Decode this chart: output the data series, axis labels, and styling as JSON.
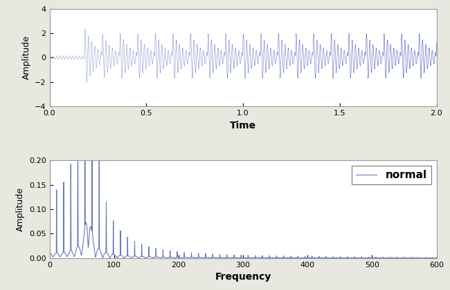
{
  "time_xlim": [
    0,
    2
  ],
  "time_ylim": [
    -4,
    4
  ],
  "time_yticks": [
    -4,
    -2,
    0,
    2,
    4
  ],
  "time_xticks": [
    0,
    0.5,
    1.0,
    1.5,
    2.0
  ],
  "time_xlabel": "Time",
  "time_ylabel": "Amplitude",
  "freq_xlim": [
    0,
    600
  ],
  "freq_ylim": [
    0,
    0.2
  ],
  "freq_yticks": [
    0,
    0.05,
    0.1,
    0.15,
    0.2
  ],
  "freq_xticks": [
    0,
    100,
    200,
    300,
    400,
    500,
    600
  ],
  "freq_xlabel": "Frequency",
  "freq_ylabel": "Amplitude",
  "legend_label": "normal",
  "line_color_time_light": "#8899cc",
  "line_color_time_dark": "#2233aa",
  "line_color_freq": "#6677bb",
  "bg_color": "#ffffff",
  "fig_color": "#e8e8e0",
  "sample_rate": 4096,
  "duration": 2.0,
  "carrier_freq": 60.0,
  "burst_rate": 11.0,
  "burst_amplitude": 2.5,
  "burst_decay": 18.0,
  "num_bursts": 22,
  "first_burst_time": 0.18
}
